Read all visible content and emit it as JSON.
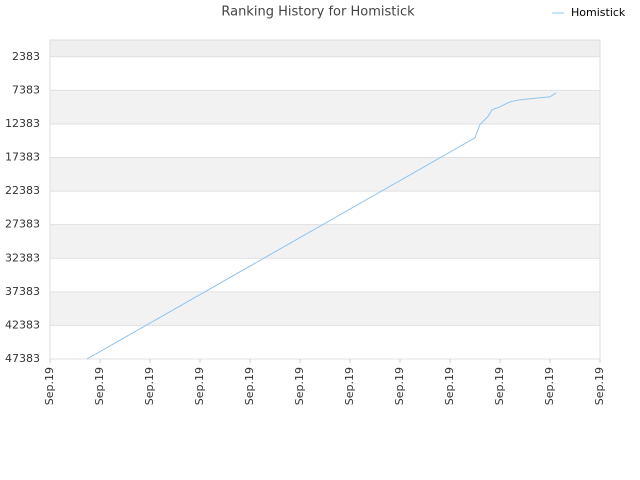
{
  "chart_data": {
    "type": "line",
    "title": "Ranking History for Homistick",
    "x": [
      0.74,
      8.5,
      8.6,
      8.76,
      8.84,
      9.0,
      9.2,
      9.4,
      9.8,
      10.0,
      10.12
    ],
    "series": [
      {
        "name": "Homistick",
        "color": "#90c4ee",
        "values": [
          47383,
          14451,
          12451,
          11260,
          10280,
          9833,
          9086,
          8790,
          8490,
          8340,
          7760
        ]
      }
    ],
    "xlim": [
      0,
      11
    ],
    "xticks": [
      {
        "value": 0,
        "label": "Sep.19"
      },
      {
        "value": 1,
        "label": "Sep.19"
      },
      {
        "value": 2,
        "label": "Sep.19"
      },
      {
        "value": 3,
        "label": "Sep.19"
      },
      {
        "value": 4,
        "label": "Sep.19"
      },
      {
        "value": 5,
        "label": "Sep.19"
      },
      {
        "value": 6,
        "label": "Sep.19"
      },
      {
        "value": 7,
        "label": "Sep.19"
      },
      {
        "value": 8,
        "label": "Sep.19"
      },
      {
        "value": 9,
        "label": "Sep.19"
      },
      {
        "value": 10,
        "label": "Sep.19"
      },
      {
        "value": 11,
        "label": "Sep.19"
      }
    ],
    "ylim": [
      47383,
      -117
    ],
    "yticks": [
      2383,
      7383,
      12383,
      17383,
      22383,
      27383,
      32383,
      37383,
      42383,
      47383
    ],
    "grid": true,
    "legend": "top-right"
  }
}
